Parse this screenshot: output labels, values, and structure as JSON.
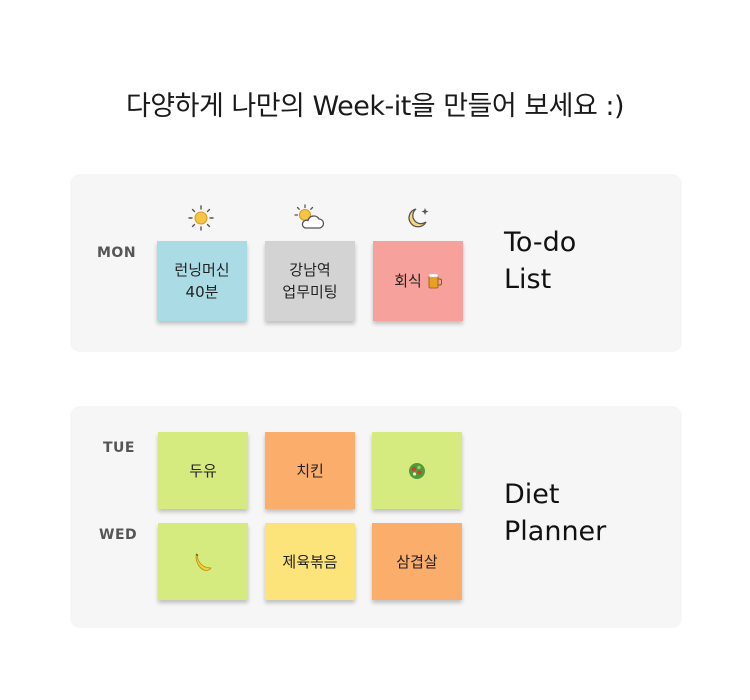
{
  "headline": "다양하게 나만의 Week-it을 만들어 보세요 :)",
  "todo": {
    "day": "MON",
    "label": "To-do\nList",
    "weather_icons": [
      "sun-icon",
      "partly-cloudy-icon",
      "moon-stars-icon"
    ],
    "notes": [
      {
        "text": "런닝머신\n40분",
        "color": "#abdce6"
      },
      {
        "text": "강남역\n업무미팅",
        "color": "#d3d3d3"
      },
      {
        "text": "회식",
        "emoji": "beer-mug-icon",
        "color": "#f6a19b"
      }
    ]
  },
  "diet": {
    "label": "Diet\nPlanner",
    "days": [
      "TUE",
      "WED"
    ],
    "rows": [
      [
        {
          "text": "두유",
          "color": "#d6eb7f"
        },
        {
          "text": "치킨",
          "color": "#fbad6b"
        },
        {
          "text": "",
          "emoji": "salad-icon",
          "color": "#d6eb7f"
        }
      ],
      [
        {
          "text": "",
          "emoji": "banana-icon",
          "color": "#d6eb7f"
        },
        {
          "text": "제육볶음",
          "color": "#fde47a"
        },
        {
          "text": "삼겹살",
          "color": "#fbad6b"
        }
      ]
    ]
  }
}
